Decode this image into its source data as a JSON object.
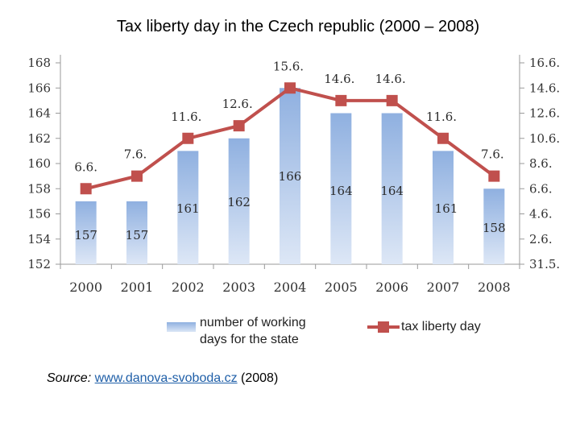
{
  "chart_data": {
    "type": "bar+line",
    "title": "Tax liberty day in the Czech republic (2000 – 2008)",
    "categories": [
      "2000",
      "2001",
      "2002",
      "2003",
      "2004",
      "2005",
      "2006",
      "2007",
      "2008"
    ],
    "series": [
      {
        "name": "number of working days for the state",
        "type": "bar",
        "axis": "left",
        "values": [
          157,
          157,
          161,
          162,
          166,
          164,
          164,
          161,
          158
        ],
        "labels": [
          "157",
          "157",
          "161",
          "162",
          "166",
          "164",
          "164",
          "161",
          "158"
        ],
        "color": "#8fb0e0"
      },
      {
        "name": "tax liberty day",
        "type": "line",
        "axis": "left",
        "values": [
          158,
          159,
          162,
          163,
          166,
          165,
          165,
          162,
          159
        ],
        "labels": [
          "6.6.",
          "7.6.",
          "11.6.",
          "12.6.",
          "15.6.",
          "14.6.",
          "14.6.",
          "11.6.",
          "7.6."
        ],
        "color": "#c0504d"
      }
    ],
    "left_axis": {
      "ylim": [
        152,
        168
      ],
      "ticks": [
        "152",
        "154",
        "156",
        "158",
        "160",
        "162",
        "164",
        "166",
        "168"
      ]
    },
    "right_axis": {
      "ticks": [
        "31.5.",
        "2.6.",
        "4.6.",
        "6.6.",
        "8.6.",
        "10.6.",
        "12.6.",
        "14.6.",
        "16.6."
      ]
    },
    "legend_position": "bottom"
  },
  "legend": {
    "bar_label": "number of working days for the state",
    "line_label": "tax liberty day"
  },
  "source": {
    "label": "Source:",
    "link": "www.danova-svoboda.cz",
    "year": "(2008)"
  }
}
